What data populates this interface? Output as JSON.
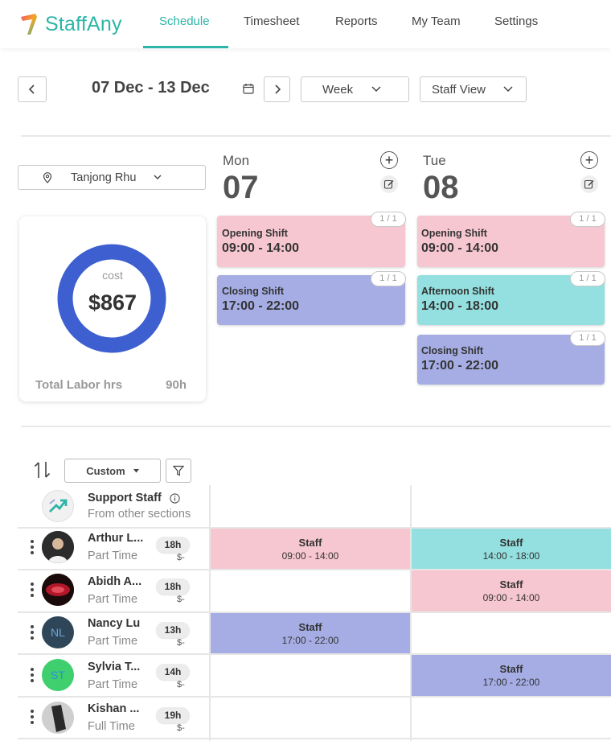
{
  "brand": {
    "name": "StaffAny",
    "accent": "#2db5a8"
  },
  "nav": {
    "items": [
      {
        "label": "Schedule",
        "active": true
      },
      {
        "label": "Timesheet",
        "active": false
      },
      {
        "label": "Reports",
        "active": false
      },
      {
        "label": "My Team",
        "active": false
      },
      {
        "label": "Settings",
        "active": false
      }
    ]
  },
  "toolbar": {
    "prev_icon": "chevron-left-icon",
    "next_icon": "chevron-right-icon",
    "date_range": "07 Dec - 13 Dec",
    "calendar_icon": "calendar-icon",
    "period_select": "Week",
    "view_select": "Staff View"
  },
  "location": {
    "selected": "Tanjong Rhu",
    "icon": "map-pin-icon"
  },
  "cost_summary": {
    "label": "cost",
    "value": "$867",
    "labor_label": "Total Labor hrs",
    "labor_value": "90h",
    "ring_color": "#3d5fcf"
  },
  "days": [
    {
      "name": "Mon",
      "number": "07",
      "shifts": [
        {
          "name": "Opening Shift",
          "time": "09:00 - 14:00",
          "count": "1 / 1",
          "color": "pink"
        },
        {
          "name": "Closing Shift",
          "time": "17:00 - 22:00",
          "count": "1 / 1",
          "color": "blue"
        }
      ]
    },
    {
      "name": "Tue",
      "number": "08",
      "shifts": [
        {
          "name": "Opening Shift",
          "time": "09:00 - 14:00",
          "count": "1 / 1",
          "color": "pink"
        },
        {
          "name": "Afternoon Shift",
          "time": "14:00 - 18:00",
          "count": "1 / 1",
          "color": "teal"
        },
        {
          "name": "Closing Shift",
          "time": "17:00 - 22:00",
          "count": "1 / 1",
          "color": "blue"
        }
      ]
    }
  ],
  "staff_grid": {
    "sort_icon": "sort-icon",
    "sort_select": "Custom",
    "filter_icon": "filter-icon",
    "support_row": {
      "title": "Support Staff",
      "subtitle": "From other sections",
      "info_icon": "info-icon"
    },
    "rows": [
      {
        "name": "Arthur L...",
        "type": "Part Time",
        "hours": "18h",
        "cost": "$-",
        "avatar": "photo",
        "initials": "",
        "cells": [
          {
            "role": "Staff",
            "time": "09:00 - 14:00",
            "color": "pink"
          },
          {
            "role": "Staff",
            "time": "14:00 - 18:00",
            "color": "teal"
          }
        ]
      },
      {
        "name": "Abidh A...",
        "type": "Part Time",
        "hours": "18h",
        "cost": "$-",
        "avatar": "photo",
        "initials": "",
        "cells": [
          null,
          {
            "role": "Staff",
            "time": "09:00 - 14:00",
            "color": "pink"
          }
        ]
      },
      {
        "name": "Nancy Lu",
        "type": "Part Time",
        "hours": "13h",
        "cost": "$-",
        "avatar": "initials",
        "initials": "NL",
        "cells": [
          {
            "role": "Staff",
            "time": "17:00 - 22:00",
            "color": "blue"
          },
          null
        ]
      },
      {
        "name": "Sylvia T...",
        "type": "Part Time",
        "hours": "14h",
        "cost": "$-",
        "avatar": "initials",
        "initials": "ST",
        "cells": [
          null,
          {
            "role": "Staff",
            "time": "17:00 - 22:00",
            "color": "blue"
          }
        ]
      },
      {
        "name": "Kishan ...",
        "type": "Full Time",
        "hours": "19h",
        "cost": "$-",
        "avatar": "photo",
        "initials": "",
        "cells": [
          null,
          null
        ]
      }
    ]
  }
}
